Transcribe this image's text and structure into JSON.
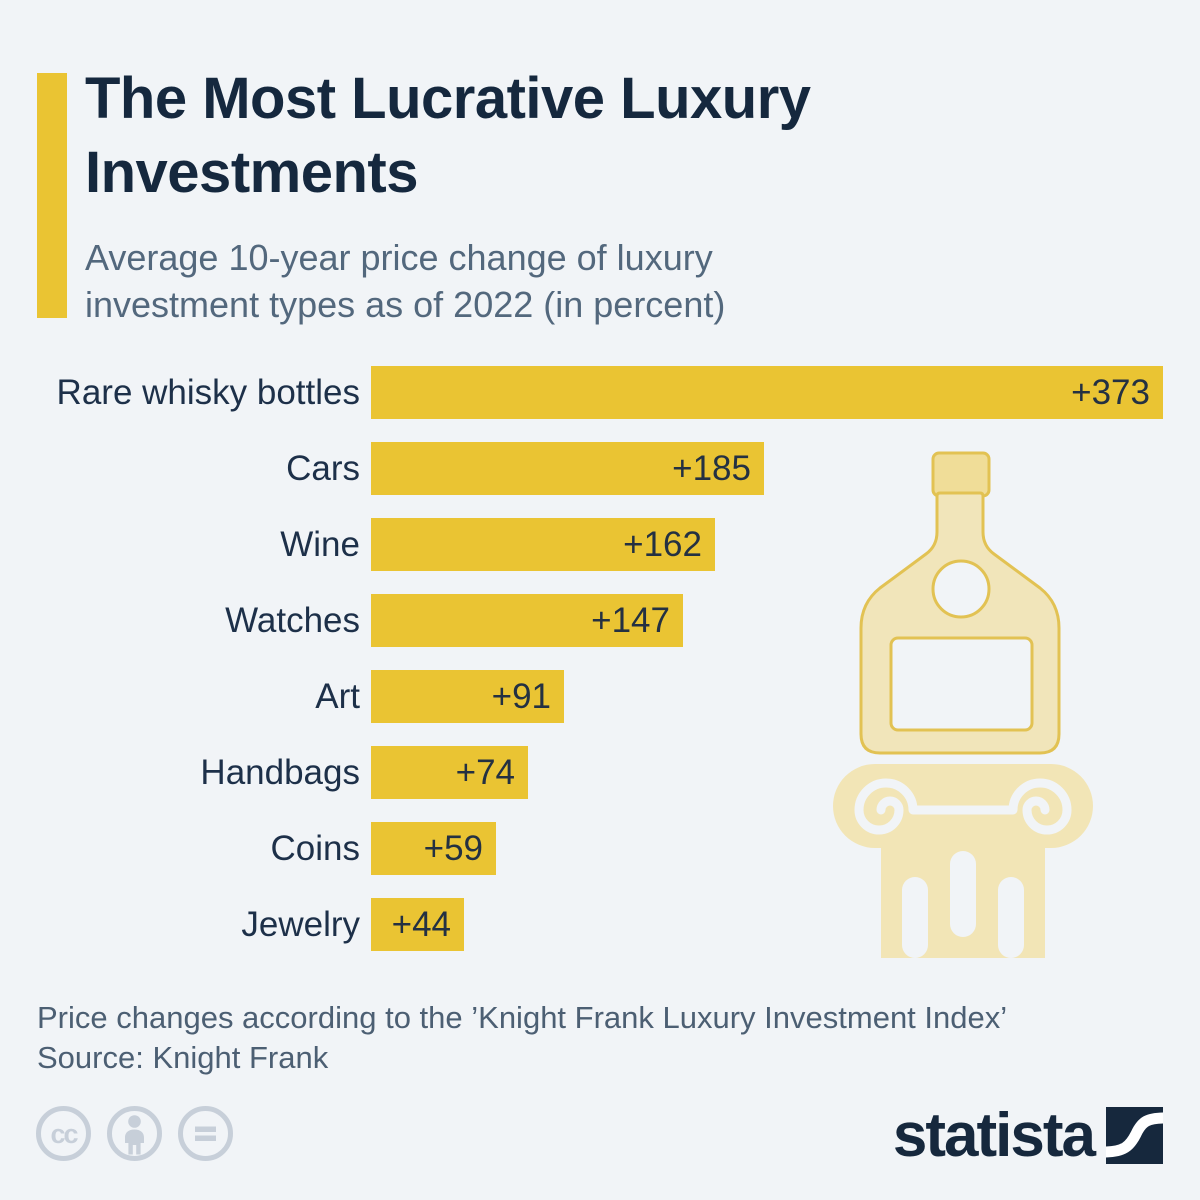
{
  "colors": {
    "background": "#F1F4F7",
    "accent_yellow": "#EAC433",
    "title_navy": "#15283E",
    "label_navy": "#1D3049",
    "value_navy": "#243142",
    "subtitle_slate": "#53687D",
    "footnote_slate": "#4C5F73",
    "cc_gray": "#C7CFD9",
    "brand_navy": "#16283D",
    "bottle_fill": "#F1E5BA",
    "bottle_stroke": "#E2C253",
    "cap_fill": "#F0DD98",
    "column_fill": "#F2E5B6",
    "white": "#FFFFFF"
  },
  "header": {
    "title": "The Most Lucrative Luxury Investments",
    "subtitle": "Average 10-year price change of luxury investment types as of 2022 (in percent)"
  },
  "chart_data": {
    "type": "bar",
    "orientation": "horizontal",
    "title": "The Most Lucrative Luxury Investments",
    "subtitle": "Average 10-year price change of luxury investment types as of 2022 (in percent)",
    "categories": [
      "Rare whisky bottles",
      "Cars",
      "Wine",
      "Watches",
      "Art",
      "Handbags",
      "Coins",
      "Jewelry"
    ],
    "values": [
      373,
      185,
      162,
      147,
      91,
      74,
      59,
      44
    ],
    "value_labels": [
      "+373",
      "+185",
      "+162",
      "+147",
      "+91",
      "+74",
      "+59",
      "+44"
    ],
    "unit": "percent",
    "xlim": [
      0,
      373
    ],
    "bar_color": "#EAC433",
    "grid": false,
    "legend": false
  },
  "illustration": {
    "name": "whisky-bottle-on-column"
  },
  "footer": {
    "note": "Price changes according to the ’Knight Frank Luxury Investment Index’",
    "source": "Source: Knight Frank",
    "license_icons": [
      "cc",
      "by",
      "nd"
    ],
    "brand": "statista"
  }
}
